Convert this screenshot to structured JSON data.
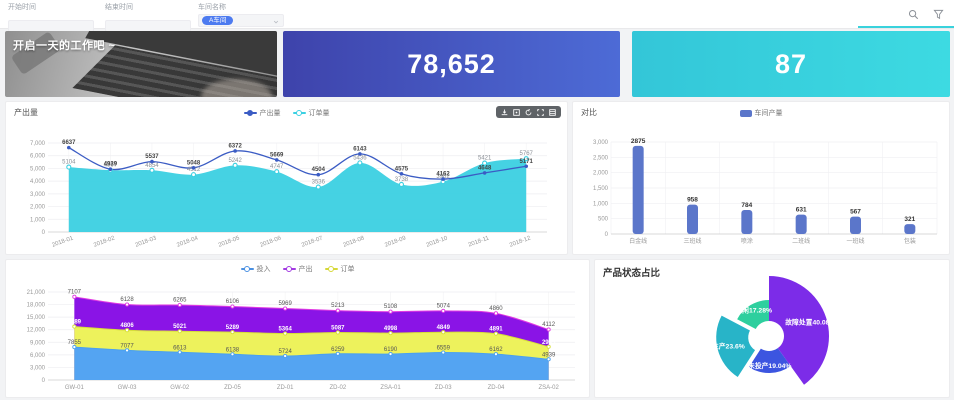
{
  "topbar": {
    "fields": [
      {
        "label": "开始时间",
        "value": ""
      },
      {
        "label": "结束时间",
        "value": ""
      },
      {
        "label": "车间名称",
        "value": "A车间"
      }
    ],
    "icons": [
      "search-icon",
      "filter-icon"
    ]
  },
  "banner": {
    "text": "开启一天的工作吧 ~"
  },
  "kpis": [
    {
      "value": "78,652",
      "color_from": "#3e43ab",
      "color_to": "#4d6bd6"
    },
    {
      "value": "87",
      "color_from": "#33c6d8",
      "color_to": "#3ddae2"
    }
  ],
  "colors": {
    "line_blue": "#3b5cc4",
    "area_cyan": "#3bd0e2",
    "bar_blue": "#5b76ca",
    "stack_input_blue": "#54a4f2",
    "stack_order_yellow": "#edf25c",
    "stack_output_purple": "#8a14e6",
    "pie_purple": "#7c2ce8",
    "pie_blue": "#3c55e0",
    "pie_teal": "#28b4c8",
    "pie_green": "#2ecf9e"
  },
  "chart_data": [
    {
      "id": "output-line",
      "type": "line",
      "title": "产出量",
      "legend": [
        {
          "label": "产出量",
          "color": "#3b5cc4",
          "filled": true
        },
        {
          "label": "订单量",
          "color": "#3bd0e2",
          "filled": false
        }
      ],
      "categories": [
        "2018-01",
        "2018-02",
        "2018-03",
        "2018-04",
        "2018-05",
        "2018-06",
        "2018-07",
        "2018-08",
        "2018-09",
        "2018-10",
        "2018-11",
        "2018-12"
      ],
      "series": [
        {
          "name": "产出量",
          "kind": "line",
          "color": "#3b5cc4",
          "values": [
            6637,
            4939,
            5537,
            5048,
            6372,
            5669,
            4504,
            6143,
            4575,
            4162,
            4648,
            5171
          ]
        },
        {
          "name": "订单量",
          "kind": "area",
          "color": "#3bd0e2",
          "values": [
            5104,
            4867,
            4854,
            4512,
            5242,
            4747,
            3536,
            5436,
            3738,
            3962,
            5421,
            5767
          ]
        }
      ],
      "xlabel": "",
      "ylabel": "",
      "ylim": [
        0,
        7000
      ],
      "ystep": 1000,
      "grid": true,
      "legend_position": "top"
    },
    {
      "id": "compare-bar",
      "type": "bar",
      "title": "对比",
      "legend": [
        {
          "label": "车间产量",
          "color": "#5b76ca"
        }
      ],
      "categories": [
        "白金线",
        "三班线",
        "喷涂",
        "二班线",
        "一班线",
        "包装"
      ],
      "values": [
        2875,
        958,
        784,
        631,
        567,
        321
      ],
      "xlabel": "",
      "ylabel": "",
      "ylim": [
        0,
        3000
      ],
      "ystep": 500,
      "grid": true,
      "legend_position": "top"
    },
    {
      "id": "io-stack",
      "type": "area",
      "title": "",
      "legend": [
        {
          "label": "投入",
          "color": "#4a90e2"
        },
        {
          "label": "产出",
          "color": "#a23ae2"
        },
        {
          "label": "订单",
          "color": "#d6d838"
        }
      ],
      "categories": [
        "GW-01",
        "GW-03",
        "GW-02",
        "ZD-05",
        "ZD-01",
        "ZD-02",
        "ZSA-01",
        "ZD-03",
        "ZD-04",
        "ZSA-02"
      ],
      "series": [
        {
          "name": "投入",
          "stroke": "#4aa0f0",
          "fill": "#54a4f2",
          "label_color": "#555",
          "values": [
            7855,
            7077,
            6613,
            6138,
            5724,
            6259,
            6190,
            6559,
            6162,
            4939
          ]
        },
        {
          "name": "订单",
          "stroke": "#d6de3a",
          "fill": "#edf25c",
          "label_color": "#fff",
          "values": [
            4889,
            4806,
            5021,
            5289,
            5364,
            5087,
            4998,
            4849,
            4891,
            2995
          ]
        },
        {
          "name": "产出",
          "stroke": "#e23ae2",
          "fill": "#8a14e6",
          "label_color": "#555",
          "values": [
            7107,
            6128,
            6265,
            6106,
            5969,
            5213,
            5108,
            5074,
            4860,
            4112
          ]
        }
      ],
      "xlabel": "",
      "ylabel": "",
      "ylim": [
        0,
        21000
      ],
      "ystep": 3000,
      "grid": true,
      "legend_position": "top"
    },
    {
      "id": "status-pie",
      "type": "pie",
      "title": "产品状态占比",
      "slices": [
        {
          "label": "故障处置",
          "pct": "40.08%",
          "value": 40.08,
          "color": "#7c2ce8",
          "radius": 60
        },
        {
          "label": "未投产",
          "pct": "19.04%",
          "value": 19.04,
          "color": "#3c55e0",
          "radius": 37
        },
        {
          "label": "生产",
          "pct": "23.6%",
          "value": 23.6,
          "color": "#28b4c8",
          "radius": 47,
          "offset": 6
        },
        {
          "label": "空闲",
          "pct": "17.28%",
          "value": 17.28,
          "color": "#2ecf9e",
          "radius": 36
        }
      ],
      "inner_radius": 15,
      "legend_position": "none"
    }
  ]
}
